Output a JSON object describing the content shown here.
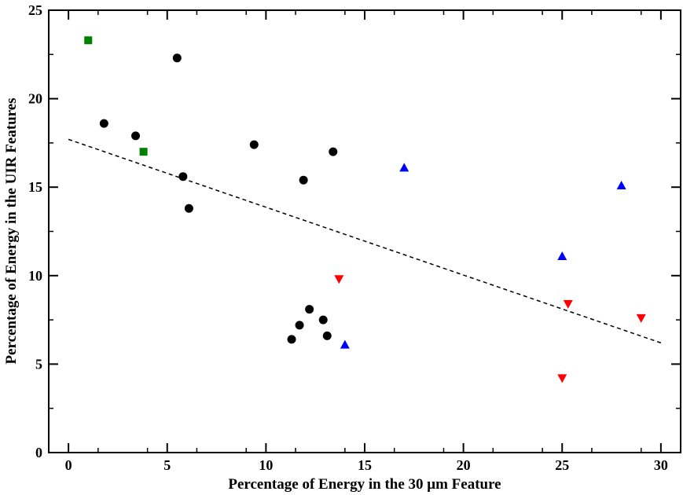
{
  "chart_data": {
    "type": "scatter",
    "title": "",
    "xlabel": "Percentage of Energy in the 30 μm Feature",
    "ylabel": "Percentage of Energy in the UIR Features",
    "xlim": [
      -1,
      31
    ],
    "ylim": [
      0,
      25
    ],
    "x_ticks": [
      0,
      5,
      10,
      15,
      20,
      25,
      30
    ],
    "y_ticks": [
      0,
      5,
      10,
      15,
      20,
      25
    ],
    "grid": false,
    "series": [
      {
        "name": "circles",
        "marker": "circle",
        "color": "#000000",
        "points": [
          {
            "x": 1.8,
            "y": 18.6
          },
          {
            "x": 3.4,
            "y": 17.9
          },
          {
            "x": 5.5,
            "y": 22.3
          },
          {
            "x": 5.8,
            "y": 15.6
          },
          {
            "x": 6.1,
            "y": 13.8
          },
          {
            "x": 9.4,
            "y": 17.4
          },
          {
            "x": 11.9,
            "y": 15.4
          },
          {
            "x": 13.4,
            "y": 17.0
          },
          {
            "x": 11.3,
            "y": 6.4
          },
          {
            "x": 11.7,
            "y": 7.2
          },
          {
            "x": 12.2,
            "y": 8.1
          },
          {
            "x": 12.9,
            "y": 7.5
          },
          {
            "x": 13.1,
            "y": 6.6
          }
        ]
      },
      {
        "name": "squares",
        "marker": "square",
        "color": "#008000",
        "points": [
          {
            "x": 1.0,
            "y": 23.3
          },
          {
            "x": 3.8,
            "y": 17.0
          }
        ]
      },
      {
        "name": "up-triangles",
        "marker": "triangle-up",
        "color": "#0000ff",
        "points": [
          {
            "x": 14.0,
            "y": 6.1
          },
          {
            "x": 17.0,
            "y": 16.1
          },
          {
            "x": 25.0,
            "y": 11.1
          },
          {
            "x": 28.0,
            "y": 15.1
          }
        ]
      },
      {
        "name": "down-triangles",
        "marker": "triangle-down",
        "color": "#ff0000",
        "points": [
          {
            "x": 13.7,
            "y": 9.8
          },
          {
            "x": 25.0,
            "y": 4.2
          },
          {
            "x": 25.3,
            "y": 8.4
          },
          {
            "x": 29.0,
            "y": 7.6
          }
        ]
      }
    ],
    "fit_line": {
      "style": "dashed",
      "color": "#000000",
      "x": [
        0,
        30
      ],
      "y": [
        17.7,
        6.2
      ]
    }
  }
}
